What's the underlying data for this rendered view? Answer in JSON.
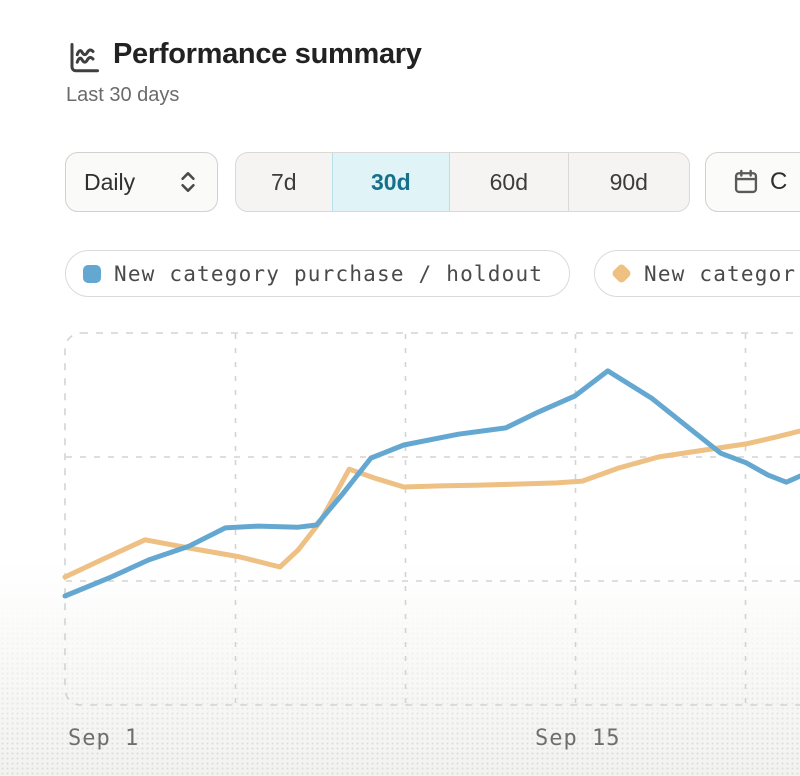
{
  "header": {
    "icon": "chart-line-icon",
    "title": "Performance summary",
    "subtitle": "Last 30 days"
  },
  "controls": {
    "granularity": {
      "value": "Daily"
    },
    "ranges": [
      {
        "label": "7d",
        "active": false
      },
      {
        "label": "30d",
        "active": true
      },
      {
        "label": "60d",
        "active": false
      },
      {
        "label": "90d",
        "active": false
      }
    ],
    "custom_range": {
      "label": "C"
    }
  },
  "legend": [
    {
      "label": "New category purchase / holdout",
      "swatch": "square"
    },
    {
      "label": "New categor",
      "swatch": "diamond",
      "clipped": true
    }
  ],
  "x_axis": {
    "labels": [
      "Sep 1",
      "Sep 15"
    ]
  },
  "colors": {
    "accent_teal": "#17708a",
    "active_range_bg": "#e0f4f8",
    "blue_series": "#64a8d2",
    "orange_series": "#eec083",
    "grid": "#d3d3d1"
  },
  "chart_data": {
    "type": "line",
    "title": "Performance summary",
    "subtitle": "Last 30 days",
    "x_unit": "days since Sep 1",
    "x_tick_labels": [
      "Sep 1",
      "Sep 15"
    ],
    "x_tick_positions": [
      0,
      14
    ],
    "y_axis_visible": false,
    "ylim": [
      0,
      100
    ],
    "grid": "dashed",
    "legend_position": "top",
    "series": [
      {
        "name": "New category purchase / holdout",
        "color": "#64a8d2",
        "points": [
          [
            0,
            29.3
          ],
          [
            1.2,
            34.1
          ],
          [
            2.3,
            39
          ],
          [
            3.4,
            42.7
          ],
          [
            4.4,
            47.6
          ],
          [
            5.3,
            48.1
          ],
          [
            6.4,
            47.8
          ],
          [
            6.9,
            48.4
          ],
          [
            7.6,
            56.5
          ],
          [
            8.4,
            66.4
          ],
          [
            9.3,
            69.9
          ],
          [
            10.8,
            72.8
          ],
          [
            12.1,
            74.5
          ],
          [
            13,
            78.8
          ],
          [
            14,
            83.1
          ],
          [
            14.9,
            89.8
          ],
          [
            16.1,
            82.5
          ],
          [
            17.2,
            73.9
          ],
          [
            18,
            67.7
          ],
          [
            18.7,
            65.1
          ],
          [
            19.3,
            61.8
          ],
          [
            19.8,
            59.9
          ],
          [
            20.2,
            61.6
          ]
        ]
      },
      {
        "name": "New categor",
        "color": "#eec083",
        "points": [
          [
            0,
            34.4
          ],
          [
            1,
            39
          ],
          [
            2.2,
            44.4
          ],
          [
            3.4,
            42.2
          ],
          [
            4.8,
            39.8
          ],
          [
            5.9,
            37.1
          ],
          [
            6.4,
            41.7
          ],
          [
            7,
            49.2
          ],
          [
            7.8,
            63.4
          ],
          [
            8.5,
            61
          ],
          [
            9.3,
            58.6
          ],
          [
            10.3,
            58.9
          ],
          [
            11.4,
            59.1
          ],
          [
            12.5,
            59.4
          ],
          [
            13.5,
            59.7
          ],
          [
            14.2,
            60.2
          ],
          [
            15.2,
            63.7
          ],
          [
            16.3,
            66.7
          ],
          [
            17.4,
            68.3
          ],
          [
            18.7,
            70.2
          ],
          [
            19.5,
            72
          ],
          [
            20.2,
            73.7
          ]
        ]
      }
    ]
  }
}
